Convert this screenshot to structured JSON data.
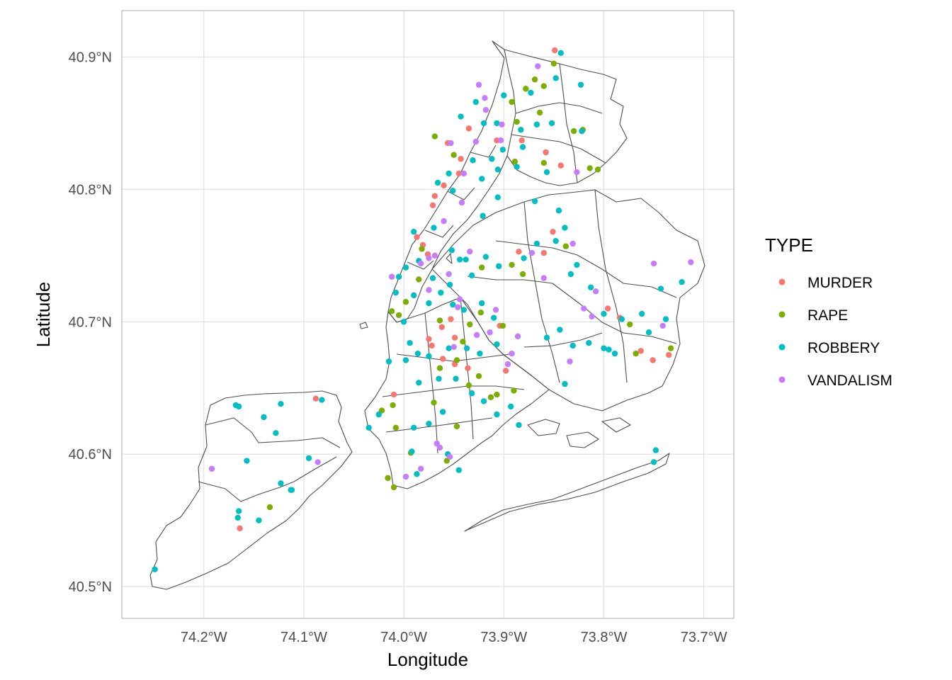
{
  "chart_data": {
    "type": "scatter",
    "title": "",
    "xlabel": "Longitude",
    "ylabel": "Latitude",
    "xlim": [
      -74.282,
      -73.67
    ],
    "ylim": [
      40.476,
      40.935
    ],
    "grid": true,
    "x_ticks": [
      {
        "value": -74.2,
        "label": "74.2°W"
      },
      {
        "value": -74.1,
        "label": "74.1°W"
      },
      {
        "value": -74.0,
        "label": "74.0°W"
      },
      {
        "value": -73.9,
        "label": "73.9°W"
      },
      {
        "value": -73.8,
        "label": "73.8°W"
      },
      {
        "value": -73.7,
        "label": "73.7°W"
      }
    ],
    "y_ticks": [
      {
        "value": 40.5,
        "label": "40.5°N"
      },
      {
        "value": 40.6,
        "label": "40.6°N"
      },
      {
        "value": 40.7,
        "label": "40.7°N"
      },
      {
        "value": 40.8,
        "label": "40.8°N"
      },
      {
        "value": 40.9,
        "label": "40.9°N"
      }
    ],
    "legend": {
      "title": "TYPE",
      "position": "right",
      "entries": [
        {
          "name": "MURDER",
          "color": "#F8766D"
        },
        {
          "name": "RAPE",
          "color": "#7CAE00"
        },
        {
          "name": "ROBBERY",
          "color": "#00BFC4"
        },
        {
          "name": "VANDALISM",
          "color": "#C77CFF"
        }
      ]
    },
    "series": [
      {
        "name": "MURDER",
        "color": "#F8766D",
        "points": [
          [
            -73.987,
            40.764
          ],
          [
            -73.983,
            40.744
          ],
          [
            -73.981,
            40.758
          ],
          [
            -73.976,
            40.751
          ],
          [
            -73.971,
            40.788
          ],
          [
            -73.969,
            40.795
          ],
          [
            -73.96,
            40.803
          ],
          [
            -73.945,
            40.812
          ],
          [
            -73.943,
            40.823
          ],
          [
            -73.956,
            40.835
          ],
          [
            -73.935,
            40.846
          ],
          [
            -73.882,
            40.837
          ],
          [
            -73.843,
            40.818
          ],
          [
            -73.851,
            40.768
          ],
          [
            -73.858,
            40.828
          ],
          [
            -73.86,
            40.752
          ],
          [
            -73.949,
            40.688
          ],
          [
            -73.953,
            40.702
          ],
          [
            -73.975,
            40.687
          ],
          [
            -73.972,
            40.682
          ],
          [
            -73.962,
            40.696
          ],
          [
            -73.949,
            40.668
          ],
          [
            -73.961,
            40.672
          ],
          [
            -74.01,
            40.645
          ],
          [
            -73.796,
            40.71
          ],
          [
            -73.784,
            40.703
          ],
          [
            -73.763,
            40.678
          ],
          [
            -73.751,
            40.671
          ],
          [
            -73.735,
            40.675
          ],
          [
            -74.088,
            40.642
          ],
          [
            -74.164,
            40.544
          ],
          [
            -73.849,
            40.905
          ],
          [
            -73.907,
            40.837
          ],
          [
            -73.904,
            40.697
          ],
          [
            -73.898,
            40.663
          ],
          [
            -73.936,
            40.665
          ],
          [
            -73.885,
            40.753
          ]
        ]
      },
      {
        "name": "RAPE",
        "color": "#7CAE00",
        "points": [
          [
            -73.85,
            40.895
          ],
          [
            -73.869,
            40.883
          ],
          [
            -73.878,
            40.876
          ],
          [
            -73.86,
            40.878
          ],
          [
            -73.892,
            40.866
          ],
          [
            -73.887,
            40.851
          ],
          [
            -73.864,
            40.858
          ],
          [
            -73.821,
            40.845
          ],
          [
            -73.86,
            40.82
          ],
          [
            -73.814,
            40.816
          ],
          [
            -73.806,
            40.815
          ],
          [
            -73.838,
            40.757
          ],
          [
            -73.892,
            40.743
          ],
          [
            -73.922,
            40.741
          ],
          [
            -73.881,
            40.736
          ],
          [
            -73.982,
            40.755
          ],
          [
            -73.985,
            40.732
          ],
          [
            -73.998,
            40.715
          ],
          [
            -74.012,
            40.708
          ],
          [
            -74.005,
            40.705
          ],
          [
            -73.964,
            40.701
          ],
          [
            -73.934,
            40.698
          ],
          [
            -73.923,
            40.707
          ],
          [
            -73.901,
            40.697
          ],
          [
            -73.774,
            40.698
          ],
          [
            -73.733,
            40.68
          ],
          [
            -73.768,
            40.676
          ],
          [
            -73.941,
            40.685
          ],
          [
            -73.947,
            40.671
          ],
          [
            -73.964,
            40.665
          ],
          [
            -73.935,
            40.652
          ],
          [
            -73.925,
            40.659
          ],
          [
            -73.89,
            40.648
          ],
          [
            -73.907,
            40.645
          ],
          [
            -73.947,
            40.621
          ],
          [
            -74.011,
            40.637
          ],
          [
            -73.993,
            40.601
          ],
          [
            -74.008,
            40.62
          ],
          [
            -73.97,
            40.639
          ],
          [
            -74.016,
            40.582
          ],
          [
            -74.01,
            40.575
          ],
          [
            -74.134,
            40.56
          ],
          [
            -73.913,
            40.643
          ],
          [
            -73.957,
            40.595
          ],
          [
            -74.022,
            40.633
          ],
          [
            -73.83,
            40.844
          ],
          [
            -73.969,
            40.84
          ],
          [
            -73.95,
            40.826
          ],
          [
            -73.878,
            40.876
          ],
          [
            -73.889,
            40.821
          ]
        ]
      },
      {
        "name": "ROBBERY",
        "color": "#00BFC4",
        "points": [
          [
            -73.843,
            40.903
          ],
          [
            -73.823,
            40.879
          ],
          [
            -73.848,
            40.884
          ],
          [
            -73.873,
            40.873
          ],
          [
            -73.9,
            40.871
          ],
          [
            -73.928,
            40.866
          ],
          [
            -73.943,
            40.855
          ],
          [
            -73.92,
            40.85
          ],
          [
            -73.907,
            40.85
          ],
          [
            -73.883,
            40.845
          ],
          [
            -73.867,
            40.849
          ],
          [
            -73.901,
            40.83
          ],
          [
            -73.912,
            40.823
          ],
          [
            -73.931,
            40.822
          ],
          [
            -73.955,
            40.812
          ],
          [
            -73.966,
            40.805
          ],
          [
            -73.951,
            40.799
          ],
          [
            -73.881,
            40.832
          ],
          [
            -73.852,
            40.85
          ],
          [
            -73.822,
            40.844
          ],
          [
            -73.857,
            40.813
          ],
          [
            -73.887,
            40.817
          ],
          [
            -73.906,
            40.815
          ],
          [
            -73.922,
            40.808
          ],
          [
            -73.869,
            40.791
          ],
          [
            -73.845,
            40.784
          ],
          [
            -73.839,
            40.771
          ],
          [
            -73.848,
            40.761
          ],
          [
            -73.867,
            40.759
          ],
          [
            -73.88,
            40.748
          ],
          [
            -73.905,
            40.742
          ],
          [
            -73.918,
            40.749
          ],
          [
            -73.938,
            40.747
          ],
          [
            -73.952,
            40.754
          ],
          [
            -73.97,
            40.771
          ],
          [
            -73.99,
            40.768
          ],
          [
            -73.985,
            40.746
          ],
          [
            -73.998,
            40.741
          ],
          [
            -74.005,
            40.734
          ],
          [
            -74.008,
            40.722
          ],
          [
            -73.99,
            40.72
          ],
          [
            -73.975,
            40.714
          ],
          [
            -73.963,
            40.722
          ],
          [
            -73.951,
            40.713
          ],
          [
            -73.94,
            40.709
          ],
          [
            -73.922,
            40.714
          ],
          [
            -73.91,
            40.703
          ],
          [
            -73.907,
            40.683
          ],
          [
            -73.924,
            40.676
          ],
          [
            -73.937,
            40.68
          ],
          [
            -73.955,
            40.68
          ],
          [
            -73.975,
            40.674
          ],
          [
            -73.986,
            40.676
          ],
          [
            -73.994,
            40.684
          ],
          [
            -73.998,
            40.671
          ],
          [
            -74.015,
            40.67
          ],
          [
            -73.985,
            40.654
          ],
          [
            -73.965,
            40.657
          ],
          [
            -73.948,
            40.657
          ],
          [
            -73.932,
            40.646
          ],
          [
            -73.92,
            40.64
          ],
          [
            -73.907,
            40.63
          ],
          [
            -73.893,
            40.636
          ],
          [
            -73.885,
            40.622
          ],
          [
            -73.961,
            40.632
          ],
          [
            -73.975,
            40.623
          ],
          [
            -73.99,
            40.62
          ],
          [
            -74.025,
            40.63
          ],
          [
            -74.035,
            40.62
          ],
          [
            -73.992,
            40.602
          ],
          [
            -73.956,
            40.6
          ],
          [
            -73.945,
            40.588
          ],
          [
            -73.987,
            40.585
          ],
          [
            -73.827,
            40.743
          ],
          [
            -73.813,
            40.726
          ],
          [
            -73.833,
            40.736
          ],
          [
            -73.8,
            40.706
          ],
          [
            -73.782,
            40.702
          ],
          [
            -73.762,
            40.706
          ],
          [
            -73.755,
            40.692
          ],
          [
            -73.738,
            40.702
          ],
          [
            -73.743,
            40.725
          ],
          [
            -73.722,
            40.73
          ],
          [
            -73.795,
            40.679
          ],
          [
            -73.815,
            40.684
          ],
          [
            -73.831,
            40.682
          ],
          [
            -73.844,
            40.694
          ],
          [
            -73.857,
            40.688
          ],
          [
            -73.8,
            40.68
          ],
          [
            -73.789,
            40.676
          ],
          [
            -73.839,
            40.653
          ],
          [
            -73.748,
            40.603
          ],
          [
            -73.75,
            40.594
          ],
          [
            -74.168,
            40.637
          ],
          [
            -74.14,
            40.628
          ],
          [
            -74.128,
            40.616
          ],
          [
            -74.157,
            40.595
          ],
          [
            -74.095,
            40.597
          ],
          [
            -74.113,
            40.573
          ],
          [
            -74.165,
            40.557
          ],
          [
            -74.145,
            40.55
          ],
          [
            -74.249,
            40.513
          ],
          [
            -74.082,
            40.641
          ],
          [
            -74.165,
            40.636
          ],
          [
            -74.123,
            40.638
          ],
          [
            -74.166,
            40.552
          ],
          [
            -74.123,
            40.578
          ],
          [
            -74.112,
            40.573
          ],
          [
            -73.932,
            40.735
          ],
          [
            -73.906,
            40.794
          ],
          [
            -73.921,
            40.78
          ],
          [
            -73.944,
            40.747
          ],
          [
            -74.0,
            40.7
          ],
          [
            -73.954,
            40.728
          ],
          [
            -73.971,
            40.733
          ]
        ]
      },
      {
        "name": "VANDALISM",
        "color": "#C77CFF",
        "points": [
          [
            -73.925,
            40.879
          ],
          [
            -73.866,
            40.893
          ],
          [
            -73.827,
            40.813
          ],
          [
            -73.902,
            40.849
          ],
          [
            -73.903,
            40.837
          ],
          [
            -73.928,
            40.836
          ],
          [
            -73.953,
            40.835
          ],
          [
            -73.918,
            40.86
          ],
          [
            -73.975,
            40.748
          ],
          [
            -73.983,
            40.744
          ],
          [
            -73.969,
            40.75
          ],
          [
            -73.955,
            40.736
          ],
          [
            -73.96,
            40.776
          ],
          [
            -73.942,
            40.79
          ],
          [
            -73.94,
            40.812
          ],
          [
            -73.934,
            40.753
          ],
          [
            -73.872,
            40.752
          ],
          [
            -73.831,
            40.759
          ],
          [
            -73.808,
            40.723
          ],
          [
            -73.75,
            40.744
          ],
          [
            -73.713,
            40.745
          ],
          [
            -73.741,
            40.697
          ],
          [
            -73.834,
            40.67
          ],
          [
            -73.82,
            40.71
          ],
          [
            -73.908,
            40.709
          ],
          [
            -73.896,
            40.668
          ],
          [
            -73.886,
            40.689
          ],
          [
            -73.914,
            40.692
          ],
          [
            -73.927,
            40.69
          ],
          [
            -73.944,
            40.717
          ],
          [
            -73.975,
            40.724
          ],
          [
            -73.967,
            40.608
          ],
          [
            -73.954,
            40.598
          ],
          [
            -73.983,
            40.589
          ],
          [
            -73.964,
            40.605
          ],
          [
            -73.998,
            40.583
          ],
          [
            -74.192,
            40.589
          ],
          [
            -74.086,
            40.594
          ],
          [
            -73.919,
            40.869
          ],
          [
            -73.946,
            40.711
          ],
          [
            -73.95,
            40.681
          ],
          [
            -73.812,
            40.704
          ],
          [
            -73.892,
            40.676
          ],
          [
            -73.86,
            40.733
          ],
          [
            -74.012,
            40.734
          ]
        ]
      }
    ]
  }
}
